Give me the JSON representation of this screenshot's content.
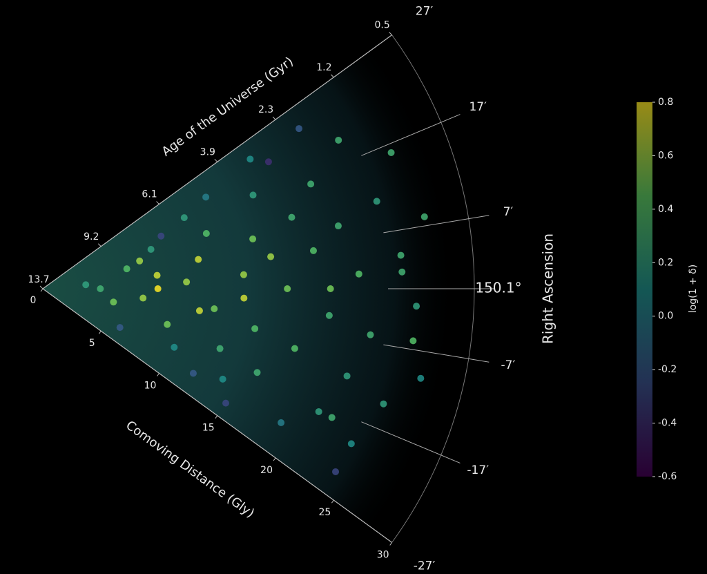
{
  "chart_data": {
    "type": "cone",
    "rlabel": "Comoving Distance (Gly)",
    "toplabel": "Age of the Universe (Gyr)",
    "thetalabel": "Right Ascension",
    "colorbar_label": "log(1 + δ)",
    "rlim": [
      0,
      30
    ],
    "rticks": [
      0,
      5,
      10,
      15,
      20,
      25,
      30
    ],
    "topticks": [
      {
        "value": 0,
        "label": "13.7"
      },
      {
        "value": 5,
        "label": "9.2"
      },
      {
        "value": 10,
        "label": "6.1"
      },
      {
        "value": 15,
        "label": "3.9"
      },
      {
        "value": 20,
        "label": "2.3"
      },
      {
        "value": 25,
        "label": "1.2"
      },
      {
        "value": 30,
        "label": "0.5"
      }
    ],
    "thetalim": [
      -27,
      27
    ],
    "thetaticks": [
      {
        "value": 27,
        "label": "27′"
      },
      {
        "value": 17,
        "label": "17′"
      },
      {
        "value": 7,
        "label": "7′"
      },
      {
        "value": 0,
        "label": "150.1°"
      },
      {
        "value": -7,
        "label": "-7′"
      },
      {
        "value": -17,
        "label": "-17′"
      },
      {
        "value": -27,
        "label": "-27′"
      }
    ],
    "clim": [
      -0.6,
      0.8
    ],
    "cticks": [
      -0.6,
      -0.4,
      -0.2,
      {
        "value": 0,
        "label": "0.0"
      },
      0.2,
      0.4,
      0.6,
      0.8
    ],
    "colormap": "viridis",
    "points": {
      "r": [
        4,
        5,
        6,
        7,
        8,
        8,
        9,
        10,
        10,
        11,
        11,
        12,
        12,
        13,
        13,
        14,
        14,
        15,
        15,
        16,
        16,
        17,
        17,
        18,
        18,
        19,
        19,
        20,
        20,
        21,
        21,
        22,
        22,
        23,
        23,
        24,
        24,
        25,
        25,
        26,
        26,
        27,
        27,
        6,
        9,
        12,
        15,
        18,
        21,
        24,
        8,
        14,
        20,
        26,
        3,
        7,
        11,
        16,
        22,
        25
      ],
      "theta": [
        0,
        -8,
        10,
        -4,
        5,
        15,
        -12,
        2,
        -18,
        8,
        20,
        -5,
        14,
        -14,
        22,
        3,
        -20,
        10,
        -8,
        -16,
        18,
        0,
        24,
        -10,
        12,
        -22,
        6,
        -4,
        16,
        -18,
        9,
        2,
        -12,
        20,
        -6,
        11,
        -20,
        4,
        -14,
        16,
        -2,
        8,
        -10,
        -20,
        18,
        -22,
        -24,
        22,
        24,
        -24,
        0,
        -2,
        0,
        -6,
        4,
        12,
        -6,
        6,
        -18,
        2
      ],
      "values": [
        0.3,
        0.5,
        0.4,
        0.6,
        0.7,
        0.2,
        0.5,
        0.6,
        0.1,
        0.7,
        0.2,
        0.5,
        0.4,
        0.3,
        0.0,
        0.6,
        0.1,
        0.5,
        0.4,
        0.3,
        0.2,
        0.5,
        0.1,
        0.4,
        0.3,
        0.0,
        0.4,
        0.3,
        0.3,
        0.2,
        0.3,
        0.4,
        0.2,
        0.3,
        0.3,
        0.2,
        0.1,
        0.3,
        0.2,
        0.3,
        0.2,
        0.3,
        0.1,
        -0.2,
        -0.3,
        -0.2,
        -0.3,
        -0.4,
        -0.2,
        -0.3,
        0.8,
        0.7,
        0.5,
        0.4,
        0.2,
        0.6,
        0.7,
        0.6,
        0.3,
        0.3
      ]
    }
  }
}
